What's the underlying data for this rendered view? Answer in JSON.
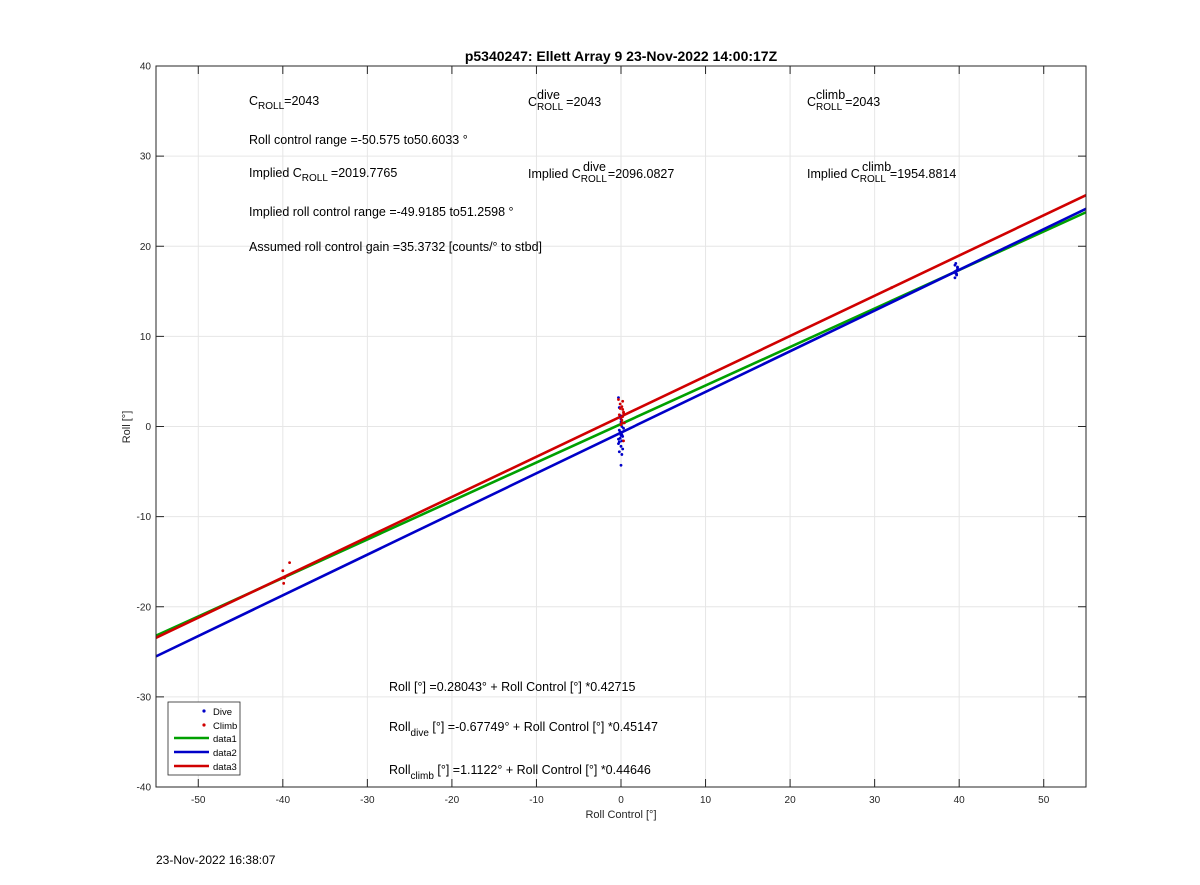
{
  "footer_timestamp": "23-Nov-2022 16:38:07",
  "chart_data": {
    "type": "scatter",
    "title": "p5340247: Ellett Array 9 23-Nov-2022 14:00:17Z",
    "xlabel": "Roll Control [°]",
    "ylabel": "Roll [°]",
    "xlim": [
      -55,
      55
    ],
    "ylim": [
      -40,
      40
    ],
    "xticks": [
      -50,
      -40,
      -30,
      -20,
      -10,
      0,
      10,
      20,
      30,
      40,
      50
    ],
    "yticks": [
      -40,
      -30,
      -20,
      -10,
      0,
      10,
      20,
      30,
      40
    ],
    "grid": true,
    "legend_position": "bottom-left",
    "colors": {
      "dive": "#0000c8",
      "climb": "#d00000",
      "data1": "#00a000",
      "data2": "#0000c8",
      "data3": "#d00000"
    },
    "series": [
      {
        "name": "Dive",
        "kind": "points",
        "color": "#0000c8",
        "x": [
          -0.3,
          -0.2,
          -0.1,
          0,
          0.1,
          -0.2,
          0,
          0.2,
          -0.1,
          0.1,
          -0.3,
          0,
          0.2,
          -0.2,
          0.1,
          0,
          -0.1,
          -0.3,
          0.3,
          0,
          0.1,
          -0.2,
          0,
          39.5,
          39.6,
          39.7,
          39.8,
          39.5,
          39.6,
          39.7,
          39.8,
          39.6,
          39.7,
          39.5,
          39.8,
          39.6
        ],
        "y": [
          3.2,
          2.1,
          1.2,
          0.5,
          0,
          -0.4,
          -0.8,
          -1.1,
          -1.3,
          -1.6,
          -1.9,
          -2.2,
          -2.5,
          -2.8,
          -3.1,
          -1.0,
          -0.6,
          -1.4,
          -0.2,
          -4.3,
          -0.9,
          -1.7,
          0.8,
          16.5,
          17.0,
          17.3,
          17.6,
          17.9,
          17.1,
          16.8,
          17.4,
          18.1,
          16.9,
          17.2,
          17.7,
          17.0
        ]
      },
      {
        "name": "Climb",
        "kind": "points",
        "color": "#d00000",
        "x": [
          -40,
          -39.8,
          -39.2,
          -39.9,
          -0.3,
          -0.1,
          0.1,
          0.2,
          0.3,
          -0.2,
          0,
          0.1,
          0.4,
          0.2,
          -0.1,
          0.3,
          0.2,
          0,
          0.1,
          0.3,
          32
        ],
        "y": [
          -16.0,
          -16.8,
          -15.1,
          -17.4,
          3.0,
          2.5,
          2.2,
          1.9,
          1.6,
          1.3,
          1.0,
          0.7,
          0.4,
          2.8,
          2.0,
          1.5,
          1.1,
          0.2,
          0.4,
          -1.6,
          15.4
        ]
      },
      {
        "name": "data1",
        "kind": "line",
        "color": "#00a000",
        "x": [
          -55,
          55
        ],
        "y": [
          -23.213,
          23.773
        ]
      },
      {
        "name": "data2",
        "kind": "line",
        "color": "#0000c8",
        "x": [
          -55,
          55
        ],
        "y": [
          -25.508,
          24.153
        ]
      },
      {
        "name": "data3",
        "kind": "line",
        "color": "#d00000",
        "x": [
          -55,
          55
        ],
        "y": [
          -23.443,
          25.668
        ]
      }
    ],
    "annotations": {
      "c_roll": {
        "base": "C",
        "sub": "ROLL",
        "value": "=2043"
      },
      "c_roll_dive": {
        "base": "C",
        "sub": "ROLL",
        "sup": "dive",
        "value": "=2043"
      },
      "c_roll_climb": {
        "base": "C",
        "sub": "ROLL",
        "sup": "climb",
        "value": "=2043"
      },
      "roll_range": "Roll control range =-50.575 to50.6033 °",
      "implied_c_roll": {
        "prefix": "Implied C",
        "sub": "ROLL",
        "value": "=2019.7765"
      },
      "implied_c_roll_dive": {
        "prefix": "Implied C",
        "sub": "ROLL",
        "sup": "dive",
        "value": "=2096.0827"
      },
      "implied_c_roll_climb": {
        "prefix": "Implied C",
        "sub": "ROLL",
        "sup": "climb",
        "value": "=1954.8814"
      },
      "implied_range": "Implied roll control range =-49.9185 to51.2598 °",
      "gain": "Assumed roll control gain =35.3732 [counts/° to stbd]",
      "fit_all": "Roll [°] =0.28043° + Roll Control [°] *0.42715",
      "fit_dive": {
        "base": "Roll",
        "sub": "dive",
        "rest": " [°] =-0.67749° + Roll Control [°] *0.45147"
      },
      "fit_climb": {
        "base": "Roll",
        "sub": "climb",
        "rest": " [°] =1.1122° + Roll Control [°] *0.44646"
      }
    }
  }
}
